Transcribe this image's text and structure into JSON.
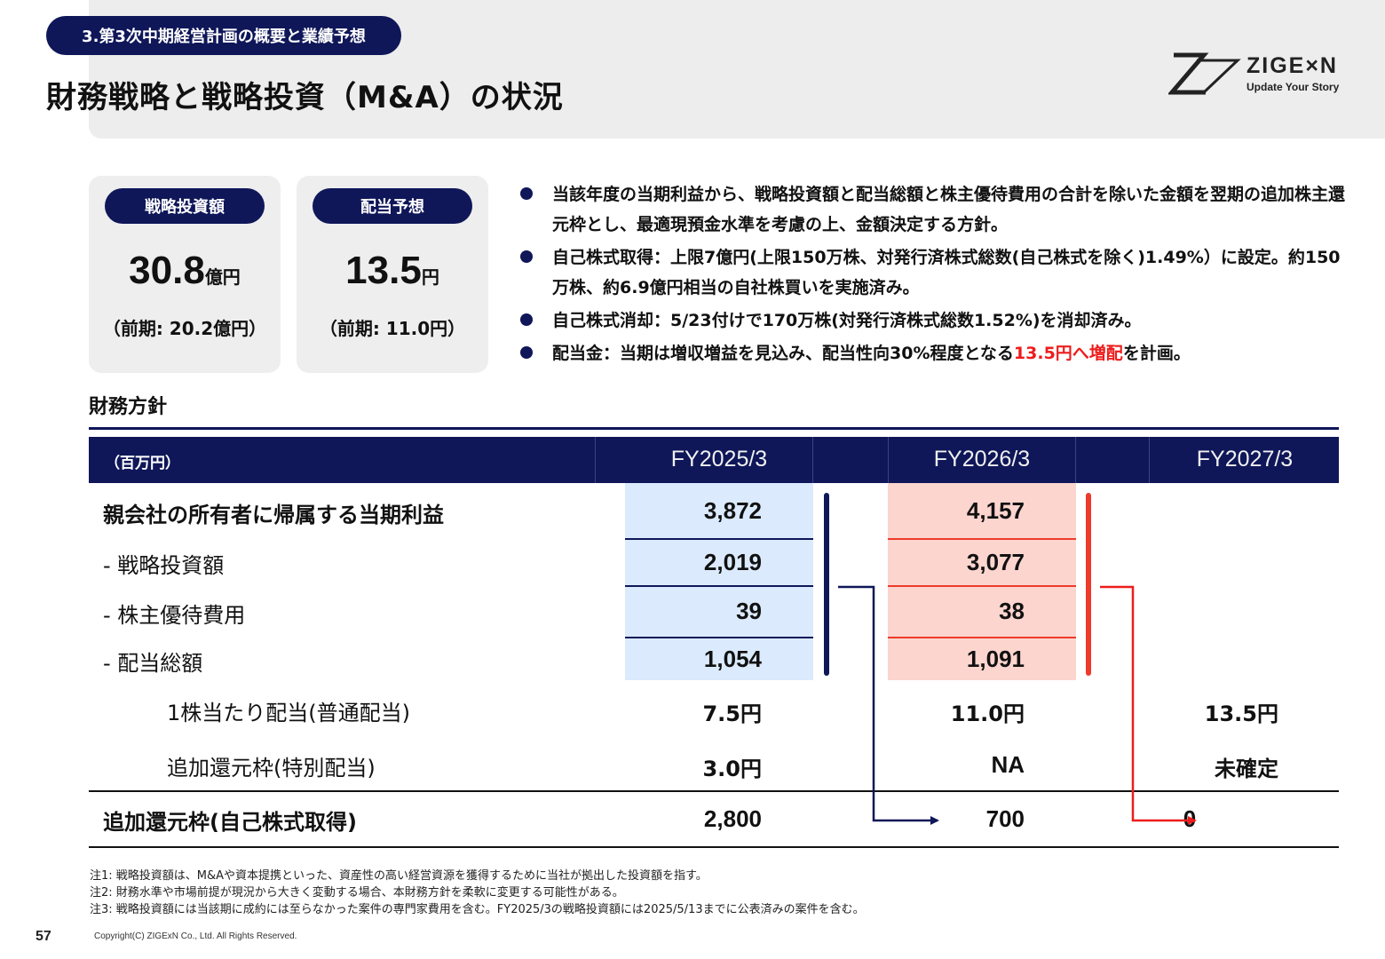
{
  "header": {
    "section": "3.第3次中期経営計画の概要と業績予想",
    "title": "財務戦略と戦略投資（M&A）の状況",
    "logo_name": "ZIGE×N",
    "logo_tagline": "Update Your Story"
  },
  "kpis": [
    {
      "label": "戦略投資額",
      "value": "30.8",
      "unit": "億円",
      "previous": "（前期: 20.2億円）"
    },
    {
      "label": "配当予想",
      "value": "13.5",
      "unit": "円",
      "previous": "（前期: 11.0円）"
    }
  ],
  "bullets": {
    "b1": "当該年度の当期利益から、戦略投資額と配当総額と株主優待費用の合計を除いた金額を翌期の追加株主還元枠とし、最適現預金水準を考慮の上、金額決定する方針。",
    "b2": "自己株式取得：上限7億円(上限150万株、対発行済株式総数(自己株式を除く)1.49%）に設定。約150万株、約6.9億円相当の自社株買いを実施済み。",
    "b3": "自己株式消却：5/23付けで170万株(対発行済株式総数1.52%)を消却済み。",
    "b4_before": "配当金：当期は増収増益を見込み、配当性向30%程度となる",
    "b4_highlight": "13.5円へ増配",
    "b4_after": "を計画。"
  },
  "policy": {
    "title": "財務方針",
    "unit": "（百万円）",
    "years": [
      "FY2025/3",
      "FY2026/3",
      "FY2027/3"
    ],
    "rows": [
      {
        "label": "親会社の所有者に帰属する当期利益",
        "values": [
          "3,872",
          "4,157",
          ""
        ]
      },
      {
        "label": "- 戦略投資額",
        "values": [
          "2,019",
          "3,077",
          ""
        ]
      },
      {
        "label": "- 株主優待費用",
        "values": [
          "39",
          "38",
          ""
        ]
      },
      {
        "label": "- 配当総額",
        "values": [
          "1,054",
          "1,091",
          ""
        ]
      },
      {
        "label": "1株当たり配当(普通配当)",
        "values": [
          "7.5円",
          "11.0円",
          "13.5円"
        ]
      },
      {
        "label": "追加還元枠(特別配当)",
        "values": [
          "3.0円",
          "NA",
          "未確定"
        ]
      },
      {
        "label": "追加還元枠(自己株式取得)",
        "values": [
          "2,800",
          "700",
          "0"
        ]
      }
    ]
  },
  "colors": {
    "navy": "#0f1759",
    "accent_red": "#ee1c1c",
    "blue_shade": "#dbeafc",
    "red_shade": "#fbd5ce"
  },
  "footer": {
    "notes": [
      "注1: 戦略投資額は、M&Aや資本提携といった、資産性の高い経営資源を獲得するために当社が拠出した投資額を指す。",
      "注2: 財務水準や市場前提が現況から大きく変動する場合、本財務方針を柔軟に変更する可能性がある。",
      "注3: 戦略投資額には当該期に成約には至らなかった案件の専門家費用を含む。FY2025/3の戦略投資額には2025/5/13までに公表済みの案件を含む。"
    ],
    "page_number": "57",
    "copyright": "Copyright(C)  ZIGExN Co., Ltd. All Rights Reserved."
  }
}
